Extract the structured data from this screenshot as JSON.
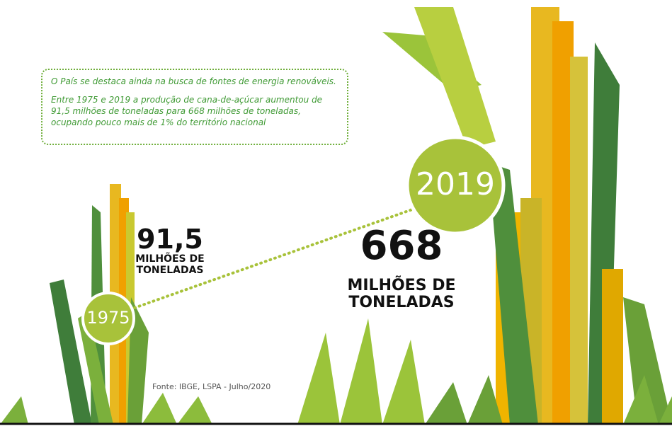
{
  "intro": {
    "headline": "O País se destaca ainda na busca de fontes de energia renováveis.",
    "body": "Entre 1975 e 2019 a produção de cana-de-açúcar aumentou de 91,5 milhões de toneladas para 668 milhões de toneladas, ocupando pouco mais de 1% do território nacional"
  },
  "start": {
    "year": "1975",
    "value": "91,5",
    "unit_lines": [
      "MILHÕES DE",
      "TONELADAS"
    ]
  },
  "end": {
    "year": "2019",
    "value": "668",
    "unit_lines": [
      "MILHÕES DE",
      "TONELADAS"
    ]
  },
  "source": "Fonte: IBGE, LSPA - Julho/2020"
}
